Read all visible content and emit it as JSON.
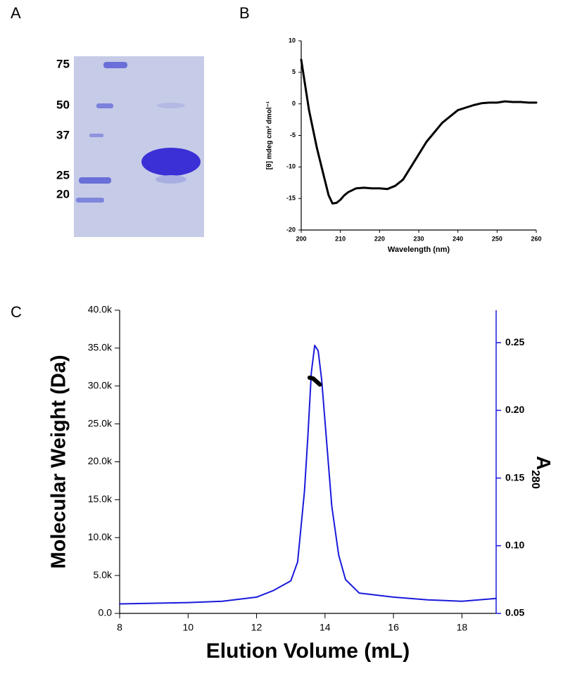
{
  "chart_data": [
    {
      "type": "gel",
      "panel": "A",
      "marker_labels": [
        75,
        50,
        37,
        25,
        20
      ]
    },
    {
      "type": "line",
      "panel": "B",
      "xlabel": "Wavelength (nm)",
      "ylabel": "[θ] mdeg cm² dmol⁻¹",
      "xlim": [
        200,
        260
      ],
      "xticks": [
        200,
        210,
        220,
        230,
        240,
        250,
        260
      ],
      "ylim": [
        -20,
        10
      ],
      "yticks": [
        -20,
        -15,
        -10,
        -5,
        0,
        5,
        10
      ],
      "series": [
        {
          "color": "#000000",
          "x": [
            200,
            202,
            204,
            206,
            207,
            208,
            209,
            210,
            211,
            212,
            214,
            216,
            218,
            220,
            222,
            224,
            226,
            228,
            230,
            232,
            234,
            236,
            238,
            240,
            242,
            244,
            246,
            248,
            250,
            252,
            254,
            256,
            258,
            260
          ],
          "values": [
            7,
            -1,
            -7,
            -12,
            -14.5,
            -15.8,
            -15.7,
            -15.2,
            -14.5,
            -14,
            -13.4,
            -13.3,
            -13.4,
            -13.4,
            -13.5,
            -13,
            -12,
            -10,
            -8,
            -6,
            -4.5,
            -3,
            -2,
            -1,
            -0.6,
            -0.2,
            0.1,
            0.2,
            0.2,
            0.4,
            0.3,
            0.3,
            0.2,
            0.2
          ]
        }
      ]
    },
    {
      "type": "line",
      "panel": "C",
      "xlabel": "Elution Volume (mL)",
      "ylabel": "Molecular Weight (Da)",
      "y2label": [
        "A",
        "280"
      ],
      "xlim": [
        8,
        19
      ],
      "xticks": [
        8,
        10,
        12,
        14,
        16,
        18
      ],
      "ylim": [
        0,
        40000
      ],
      "yticks": [
        {
          "value": 0,
          "label": "0.0"
        },
        {
          "value": 5000,
          "label": "5.0k"
        },
        {
          "value": 10000,
          "label": "10.0k"
        },
        {
          "value": 15000,
          "label": "15.0k"
        },
        {
          "value": 20000,
          "label": "20.0k"
        },
        {
          "value": 25000,
          "label": "25.0k"
        },
        {
          "value": 30000,
          "label": "30.0k"
        },
        {
          "value": 35000,
          "label": "35.0k"
        },
        {
          "value": 40000,
          "label": "40.0k"
        }
      ],
      "y2lim": [
        0.05,
        0.274
      ],
      "y2ticks": [
        0.05,
        {
          "value": 0.1,
          "label": "0.10"
        },
        0.15,
        {
          "value": 0.2,
          "label": "0.20"
        },
        0.25
      ],
      "y2color": "#1a1adb",
      "series": [
        {
          "color": "#1a1adb",
          "axis": "y2",
          "x": [
            8,
            10,
            11,
            12,
            12.5,
            13,
            13.2,
            13.4,
            13.5,
            13.6,
            13.7,
            13.8,
            13.9,
            14.0,
            14.2,
            14.4,
            14.6,
            15,
            16,
            17,
            18,
            18.5,
            19
          ],
          "values": [
            0.057,
            0.058,
            0.059,
            0.062,
            0.067,
            0.074,
            0.088,
            0.14,
            0.181,
            0.228,
            0.248,
            0.244,
            0.223,
            0.192,
            0.129,
            0.093,
            0.075,
            0.065,
            0.062,
            0.06,
            0.059,
            0.06,
            0.061
          ]
        },
        {
          "color": "#000000",
          "width": 6,
          "x": [
            13.55,
            13.65,
            13.75,
            13.85
          ],
          "values": [
            31100,
            31000,
            30600,
            30200
          ]
        }
      ]
    }
  ]
}
